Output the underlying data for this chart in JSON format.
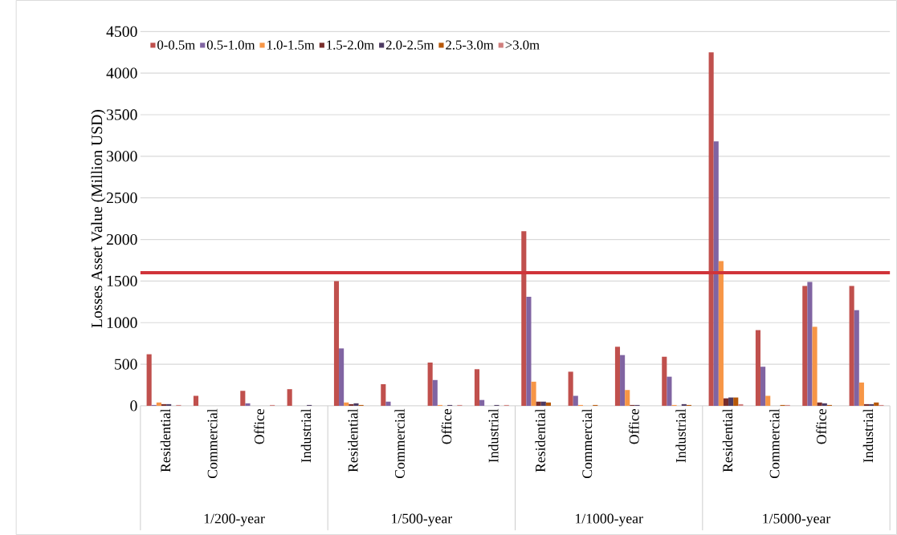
{
  "chart_data": {
    "type": "bar",
    "ylabel": "Losses Asset Value (Million USD)",
    "categories": [
      "Residential",
      "Commercial",
      "Office",
      "Industrial",
      "Residential",
      "Commercial",
      "Office",
      "Industrial",
      "Residential",
      "Commercial",
      "Office",
      "Industrial",
      "Residential",
      "Commercial",
      "Office",
      "Industrial"
    ],
    "annotations": [
      "1/200-year",
      "1/500-year",
      "1/1000-year",
      "1/5000-year"
    ],
    "series": [
      {
        "name": "0-0.5m",
        "color": "#c0504d",
        "values": [
          620,
          120,
          180,
          200,
          1500,
          260,
          520,
          440,
          2100,
          410,
          710,
          590,
          4250,
          910,
          1440,
          1440
        ]
      },
      {
        "name": "0.5-1.0m",
        "color": "#8064a2",
        "values": [
          10,
          0,
          30,
          0,
          690,
          50,
          310,
          70,
          1310,
          120,
          610,
          350,
          3180,
          470,
          1490,
          1150
        ]
      },
      {
        "name": "1.0-1.5m",
        "color": "#f79646",
        "values": [
          40,
          0,
          0,
          0,
          40,
          0,
          10,
          0,
          290,
          10,
          190,
          10,
          1740,
          120,
          950,
          280
        ]
      },
      {
        "name": "1.5-2.0m",
        "color": "#772c2a",
        "values": [
          20,
          0,
          0,
          0,
          20,
          0,
          0,
          0,
          50,
          0,
          10,
          0,
          90,
          0,
          40,
          20
        ]
      },
      {
        "name": "2.0-2.5m",
        "color": "#4d3b62",
        "values": [
          20,
          null,
          0,
          10,
          30,
          null,
          10,
          10,
          50,
          0,
          10,
          20,
          100,
          0,
          30,
          20
        ]
      },
      {
        "name": "2.5-3.0m",
        "color": "#b65708",
        "values": [
          0,
          0,
          0,
          0,
          10,
          0,
          0,
          0,
          40,
          10,
          0,
          10,
          100,
          10,
          10,
          40
        ]
      },
      {
        "name": ">3.0m",
        "color": "#d07f7d",
        "values": [
          10,
          0,
          10,
          0,
          0,
          null,
          10,
          10,
          0,
          0,
          0,
          0,
          20,
          10,
          0,
          10
        ]
      }
    ],
    "ylim": [
      0,
      4500
    ],
    "yticks": [
      0,
      500,
      1000,
      1500,
      2000,
      2500,
      3000,
      3500,
      4000,
      4500
    ],
    "grid": "y",
    "legend": "top left",
    "ref_lines": [
      {
        "axis": "y",
        "value": 1600,
        "color": "#d0343a"
      }
    ]
  }
}
